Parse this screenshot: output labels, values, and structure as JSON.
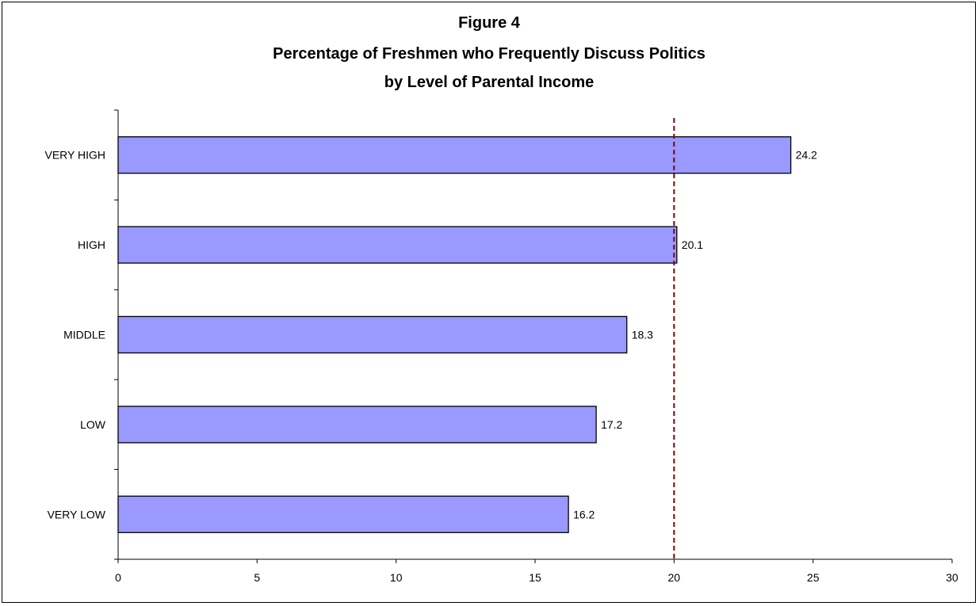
{
  "chart_data": {
    "type": "bar",
    "orientation": "horizontal",
    "title_lines": [
      "Figure 4",
      "Percentage of Freshmen who Frequently Discuss Politics",
      "by Level of Parental Income"
    ],
    "categories": [
      "VERY HIGH",
      "HIGH",
      "MIDDLE",
      "LOW",
      "VERY LOW"
    ],
    "values": [
      24.2,
      20.1,
      18.3,
      17.2,
      16.2
    ],
    "value_labels": [
      "24.2",
      "20.1",
      "18.3",
      "17.2",
      "16.2"
    ],
    "xlim": [
      0,
      30
    ],
    "xticks": [
      0,
      5,
      10,
      15,
      20,
      25,
      30
    ],
    "xtick_labels": [
      "0",
      "5",
      "10",
      "15",
      "20",
      "25",
      "30"
    ],
    "reference_line": 20,
    "grid": false,
    "legend": "none",
    "bar_color": "#9999ff",
    "bar_edge_color": "#000000",
    "reference_line_color": "#800000"
  }
}
